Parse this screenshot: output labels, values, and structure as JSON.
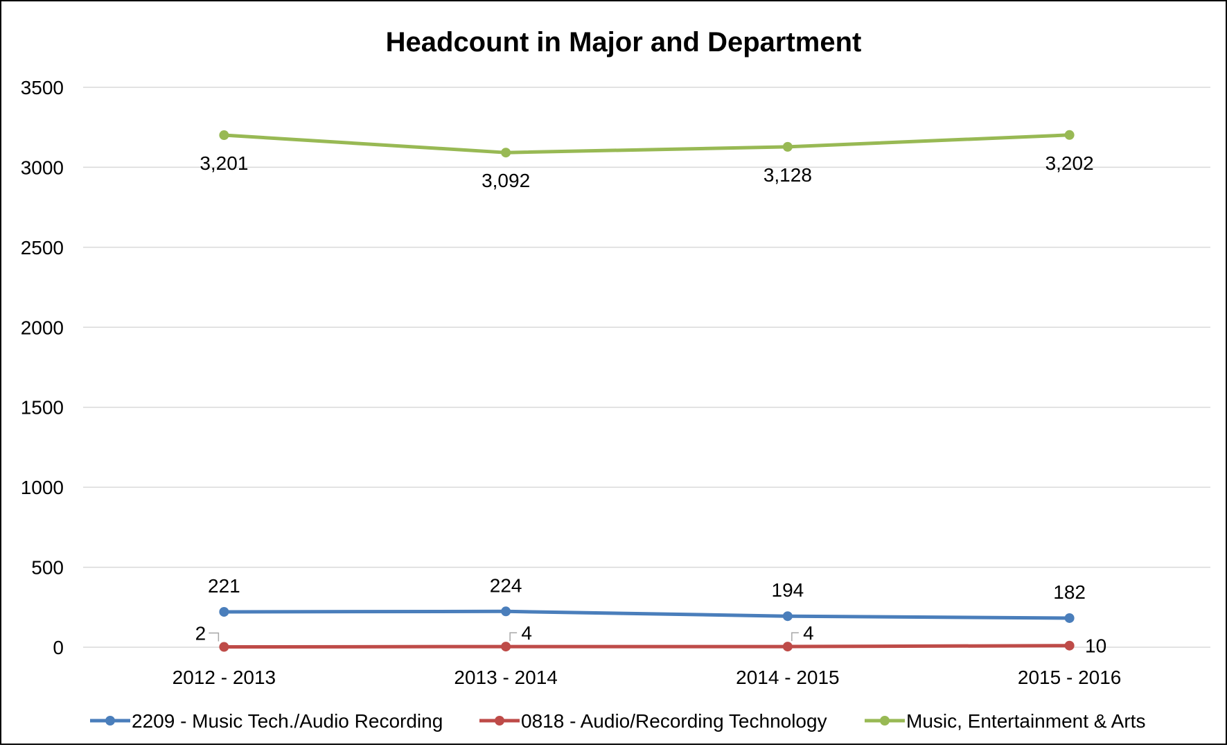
{
  "chart_data": {
    "type": "line",
    "title": "Headcount in Major and Department",
    "xlabel": "",
    "ylabel": "",
    "categories": [
      "2012 - 2013",
      "2013 - 2014",
      "2014 - 2015",
      "2015 - 2016"
    ],
    "ylim": [
      0,
      3500
    ],
    "yticks": [
      "0",
      "500",
      "1000",
      "1500",
      "2000",
      "2500",
      "3000",
      "3500"
    ],
    "ytick_values": [
      0,
      500,
      1000,
      1500,
      2000,
      2500,
      3000,
      3500
    ],
    "grid": true,
    "legend_position": "bottom",
    "series": [
      {
        "name": "2209 - Music Tech./Audio Recording",
        "color": "#4a7ebb",
        "values": [
          221,
          224,
          194,
          182
        ],
        "labels": [
          "221",
          "224",
          "194",
          "182"
        ]
      },
      {
        "name": "0818 - Audio/Recording Technology",
        "color": "#be4b48",
        "values": [
          2,
          4,
          4,
          10
        ],
        "labels": [
          "2",
          "4",
          "4",
          "10"
        ]
      },
      {
        "name": "Music, Entertainment & Arts",
        "color": "#98b954",
        "values": [
          3201,
          3092,
          3128,
          3202
        ],
        "labels": [
          "3,201",
          "3,092",
          "3,128",
          "3,202"
        ]
      }
    ]
  }
}
